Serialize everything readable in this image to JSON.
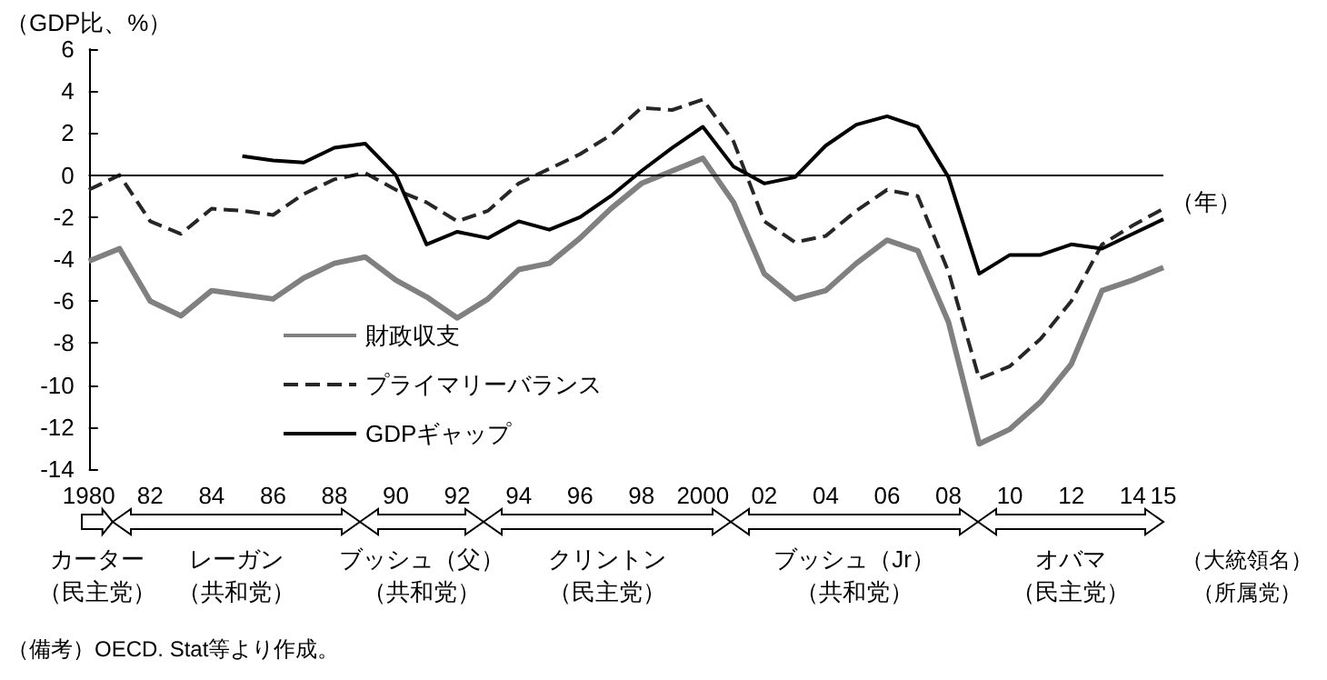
{
  "chart_data": {
    "type": "line",
    "ylabel": "（GDP比、%）",
    "xlabel": "（年）",
    "x": [
      1980,
      1981,
      1982,
      1983,
      1984,
      1985,
      1986,
      1987,
      1988,
      1989,
      1990,
      1991,
      1992,
      1993,
      1994,
      1995,
      1996,
      1997,
      1998,
      1999,
      2000,
      2001,
      2002,
      2003,
      2004,
      2005,
      2006,
      2007,
      2008,
      2009,
      2010,
      2011,
      2012,
      2013,
      2014,
      2015
    ],
    "series": [
      {
        "name": "財政収支",
        "color": "#808080",
        "line_style": "solid",
        "values": [
          -4.1,
          -3.5,
          -6.0,
          -6.7,
          -5.5,
          -5.7,
          -5.9,
          -4.9,
          -4.2,
          -3.9,
          -5.0,
          -5.8,
          -6.8,
          -5.9,
          -4.5,
          -4.2,
          -3.0,
          -1.6,
          -0.4,
          0.2,
          0.8,
          -1.3,
          -4.7,
          -5.9,
          -5.5,
          -4.2,
          -3.1,
          -3.6,
          -7.0,
          -12.8,
          -12.1,
          -10.8,
          -9.0,
          -5.5,
          -5.0,
          -4.4
        ]
      },
      {
        "name": "プライマリーバランス",
        "color": "#262626",
        "line_style": "dashed",
        "values": [
          -0.7,
          0.0,
          -2.2,
          -2.8,
          -1.6,
          -1.7,
          -1.9,
          -0.9,
          -0.2,
          0.1,
          -0.7,
          -1.3,
          -2.2,
          -1.7,
          -0.4,
          0.3,
          1.0,
          1.9,
          3.2,
          3.1,
          3.6,
          1.6,
          -2.2,
          -3.2,
          -2.9,
          -1.7,
          -0.7,
          -1.0,
          -4.6,
          -9.7,
          -9.1,
          -7.8,
          -6.0,
          -3.3,
          -2.4,
          -1.6
        ]
      },
      {
        "name": "GDPギャップ",
        "color": "#000000",
        "line_style": "solid",
        "values": [
          null,
          null,
          null,
          null,
          null,
          0.9,
          0.7,
          0.6,
          1.3,
          1.5,
          0.0,
          -3.3,
          -2.7,
          -3.0,
          -2.2,
          -2.6,
          -2.0,
          -1.0,
          0.2,
          1.3,
          2.3,
          0.4,
          -0.4,
          -0.1,
          1.4,
          2.4,
          2.8,
          2.3,
          -0.1,
          -4.7,
          -3.8,
          -3.8,
          -3.3,
          -3.5,
          -2.8,
          -2.1
        ]
      }
    ],
    "xlim": [
      1980,
      2015
    ],
    "xticks": [
      1980,
      {
        "value": 1982,
        "label": "82"
      },
      {
        "value": 1984,
        "label": "84"
      },
      {
        "value": 1986,
        "label": "86"
      },
      {
        "value": 1988,
        "label": "88"
      },
      {
        "value": 1990,
        "label": "90"
      },
      {
        "value": 1992,
        "label": "92"
      },
      {
        "value": 1994,
        "label": "94"
      },
      {
        "value": 1996,
        "label": "96"
      },
      {
        "value": 1998,
        "label": "98"
      },
      2000,
      {
        "value": 2002,
        "label": "02"
      },
      {
        "value": 2004,
        "label": "04"
      },
      {
        "value": 2006,
        "label": "06"
      },
      {
        "value": 2008,
        "label": "08"
      },
      {
        "value": 2010,
        "label": "10"
      },
      {
        "value": 2012,
        "label": "12"
      },
      {
        "value": 2014,
        "label": "14"
      },
      {
        "value": 2015,
        "label": "15"
      }
    ],
    "ylim": [
      -14,
      6
    ],
    "yticks": [
      -14,
      -12,
      -10,
      -8,
      -6,
      -4,
      -2,
      0,
      2,
      4,
      6
    ],
    "ref_lines": [
      {
        "axis": "y",
        "value": 0,
        "color": "#000000"
      }
    ],
    "grid": false,
    "legend": "bottom left",
    "marker": "none",
    "annotations": [
      "カーター",
      "（民主党）",
      "レーガン",
      "（共和党）",
      "ブッシュ（父）",
      "（共和党）",
      "クリントン",
      "（民主党）",
      "ブッシュ（Jr）",
      "（共和党）",
      "オバマ",
      "（民主党）",
      "（大統領名）",
      "（所属党）",
      "（備考）OECD. Stat等より作成。"
    ]
  }
}
